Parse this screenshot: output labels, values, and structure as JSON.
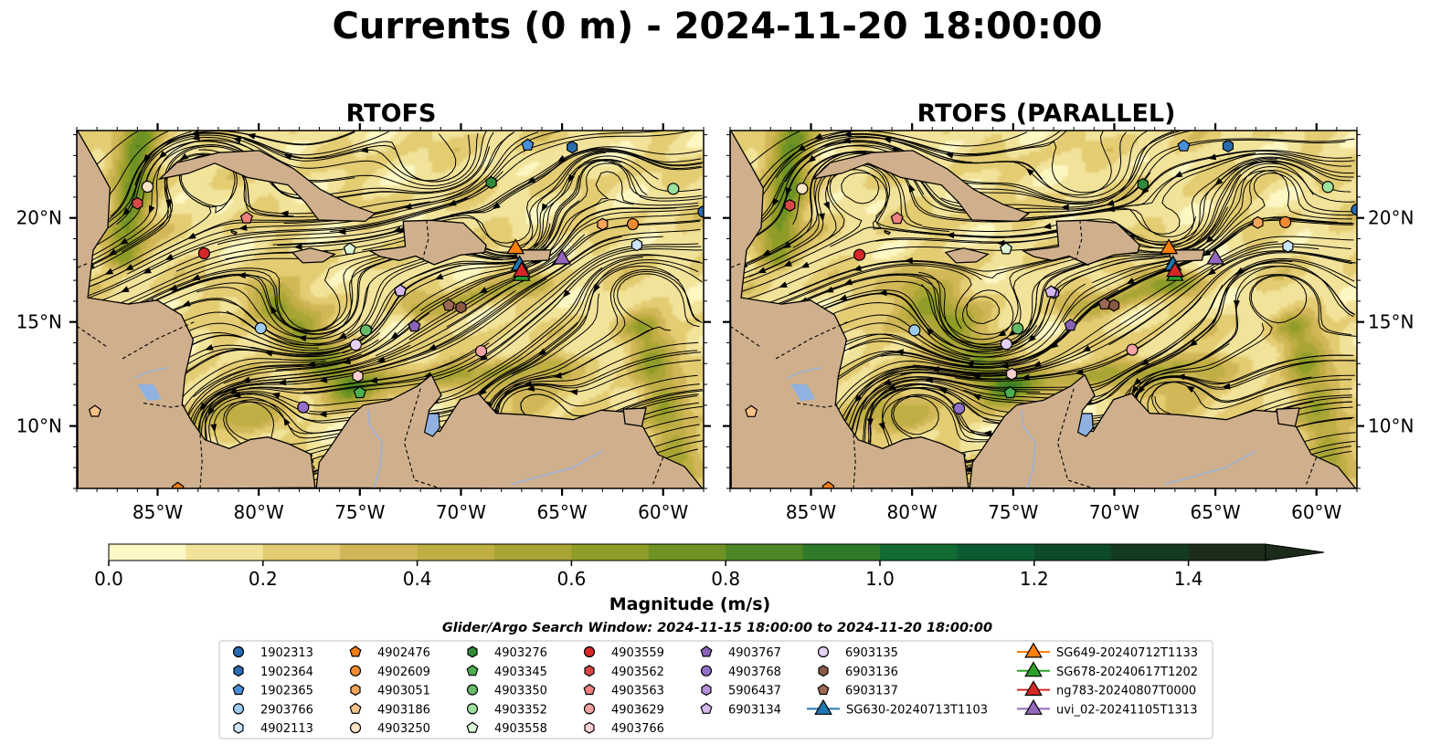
{
  "figure": {
    "title": "Currents (0 m) - 2024-11-20 18:00:00",
    "panels": [
      {
        "title": "RTOFS",
        "variant": 0
      },
      {
        "title": "RTOFS (PARALLEL)",
        "variant": 1
      }
    ],
    "search_window": "Glider/Argo Search Window: 2024-11-15 18:00:00 to 2024-11-20 18:00:00"
  },
  "chart_data": {
    "type": "heatmap",
    "title": "Currents (0 m) - 2024-11-20 18:00:00",
    "map_extent": {
      "lon": [
        -89,
        -58
      ],
      "lat": [
        7,
        24.2
      ]
    },
    "x_ticks": [
      {
        "value": -85,
        "label": "85°W"
      },
      {
        "value": -80,
        "label": "80°W"
      },
      {
        "value": -75,
        "label": "75°W"
      },
      {
        "value": -70,
        "label": "70°W"
      },
      {
        "value": -65,
        "label": "65°W"
      },
      {
        "value": -60,
        "label": "60°W"
      }
    ],
    "y_ticks": [
      {
        "value": 20,
        "label": "20°N"
      },
      {
        "value": 15,
        "label": "15°N"
      },
      {
        "value": 10,
        "label": "10°N"
      }
    ],
    "colorbar": {
      "label": "Magnitude (m/s)",
      "range": [
        0,
        1.5
      ],
      "step": 0.1,
      "extend": "max",
      "ticks": [
        {
          "value": 0.0,
          "label": "0.0"
        },
        {
          "value": 0.2,
          "label": "0.2"
        },
        {
          "value": 0.4,
          "label": "0.4"
        },
        {
          "value": 0.6,
          "label": "0.6"
        },
        {
          "value": 0.8,
          "label": "0.8"
        },
        {
          "value": 1.0,
          "label": "1.0"
        },
        {
          "value": 1.2,
          "label": "1.2"
        },
        {
          "value": 1.4,
          "label": "1.4"
        }
      ],
      "colors": [
        "#fdf7c3",
        "#f2e39a",
        "#e3cc72",
        "#d1b757",
        "#bfae44",
        "#a9a535",
        "#8f9c27",
        "#6f9224",
        "#4d8624",
        "#2f7a2a",
        "#126b32",
        "#0c5a30",
        "#0d4a2a",
        "#143a22",
        "#1c2c1a"
      ]
    },
    "colors": {
      "land": "#d0b08c",
      "lake": "#8fb2e0",
      "river": "#9cb2d8"
    },
    "floats": [
      {
        "name": "1902313",
        "marker": "circle",
        "color": "#2b6cb0",
        "lon": -58.0,
        "lat": 20.3
      },
      {
        "name": "1902364",
        "marker": "hexagon",
        "color": "#2b6cb0",
        "lon": -64.5,
        "lat": 23.4
      },
      {
        "name": "1902365",
        "marker": "pentagon",
        "color": "#4a90d9",
        "lon": -66.7,
        "lat": 23.5
      },
      {
        "name": "2903766",
        "marker": "circle",
        "color": "#9ecbf0",
        "lon": -79.9,
        "lat": 14.7
      },
      {
        "name": "4902113",
        "marker": "hexagon",
        "color": "#cce4f7",
        "lon": -61.3,
        "lat": 18.7
      },
      {
        "name": "4902476",
        "marker": "pentagon",
        "color": "#f07c1a",
        "lon": -84.0,
        "lat": 7.0
      },
      {
        "name": "4902609",
        "marker": "circle",
        "color": "#f08a30",
        "lon": -61.5,
        "lat": 19.7
      },
      {
        "name": "4903051",
        "marker": "hexagon",
        "color": "#f5a45a",
        "lon": -63.0,
        "lat": 19.7
      },
      {
        "name": "4903186",
        "marker": "pentagon",
        "color": "#f7c18c",
        "lon": -88.1,
        "lat": 10.7
      },
      {
        "name": "4903250",
        "marker": "circle",
        "color": "#fde3c5",
        "lon": -85.5,
        "lat": 21.5
      },
      {
        "name": "4903276",
        "marker": "hexagon",
        "color": "#2e8b3a",
        "lon": -68.5,
        "lat": 21.7
      },
      {
        "name": "4903345",
        "marker": "pentagon",
        "color": "#4caf50",
        "lon": -75.0,
        "lat": 11.6
      },
      {
        "name": "4903350",
        "marker": "circle",
        "color": "#66bb66",
        "lon": -74.7,
        "lat": 14.6
      },
      {
        "name": "4903352",
        "marker": "circle",
        "color": "#9ee09e",
        "lon": -59.5,
        "lat": 21.4
      },
      {
        "name": "4903558",
        "marker": "pentagon",
        "color": "#ddf7d6",
        "lon": -75.5,
        "lat": 18.5
      },
      {
        "name": "4903559",
        "marker": "circle",
        "color": "#d62728",
        "lon": -82.7,
        "lat": 18.3
      },
      {
        "name": "4903562",
        "marker": "hexagon",
        "color": "#d94848",
        "lon": -86.0,
        "lat": 20.7
      },
      {
        "name": "4903563",
        "marker": "pentagon",
        "color": "#f08080",
        "lon": -80.6,
        "lat": 20.0
      },
      {
        "name": "4903629",
        "marker": "circle",
        "color": "#f4a3a3",
        "lon": -69.0,
        "lat": 13.6
      },
      {
        "name": "4903766",
        "marker": "hexagon",
        "color": "#fbd0d0",
        "lon": -75.1,
        "lat": 12.4
      },
      {
        "name": "4903767",
        "marker": "pentagon",
        "color": "#8a63b8",
        "lon": -72.3,
        "lat": 14.8
      },
      {
        "name": "4903768",
        "marker": "circle",
        "color": "#9370c8",
        "lon": -77.8,
        "lat": 10.9
      },
      {
        "name": "5906437",
        "marker": "hexagon",
        "color": "#b592d9",
        "lon": -73.0,
        "lat": 16.5
      },
      {
        "name": "6903134",
        "marker": "pentagon",
        "color": "#d5b8ef",
        "lon": -73.0,
        "lat": 16.5
      },
      {
        "name": "6903135",
        "marker": "circle",
        "color": "#e6d1f5",
        "lon": -75.2,
        "lat": 13.9
      },
      {
        "name": "6903136",
        "marker": "hexagon",
        "color": "#8b5a45",
        "lon": -70.0,
        "lat": 15.7
      },
      {
        "name": "6903137",
        "marker": "pentagon",
        "color": "#9c6a55",
        "lon": -70.6,
        "lat": 15.8
      }
    ],
    "gliders": [
      {
        "name": "SG630-20240713T1103",
        "color": "#1f77b4",
        "lon": -67.1,
        "lat": 17.8
      },
      {
        "name": "SG649-20240712T1133",
        "color": "#ff7f0e",
        "lon": -67.3,
        "lat": 18.6
      },
      {
        "name": "SG678-20240617T1202",
        "color": "#2ca02c",
        "lon": -67.0,
        "lat": 17.3
      },
      {
        "name": "ng783-20240807T0000",
        "color": "#d62728",
        "lon": -67.0,
        "lat": 17.5
      },
      {
        "name": "uvi_02-20241105T1313",
        "color": "#9467bd",
        "lon": -65.0,
        "lat": 18.1
      }
    ],
    "legend_order": [
      "1902313",
      "1902364",
      "1902365",
      "2903766",
      "4902113",
      "4902476",
      "4902609",
      "4903051",
      "4903186",
      "4903250",
      "4903276",
      "4903345",
      "4903350",
      "4903352",
      "4903558",
      "4903559",
      "4903562",
      "4903563",
      "4903629",
      "4903766",
      "4903767",
      "4903768",
      "5906437",
      "6903134",
      "6903135",
      "6903136",
      "6903137",
      "SG630-20240713T1103",
      "SG649-20240712T1133",
      "SG678-20240617T1202",
      "ng783-20240807T0000",
      "uvi_02-20241105T1313"
    ]
  }
}
